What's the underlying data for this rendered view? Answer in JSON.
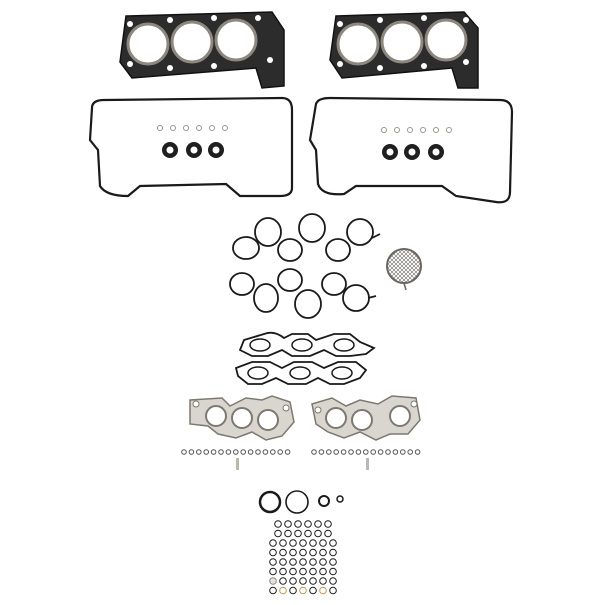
{
  "image": {
    "subject": "engine-head-gasket-set",
    "background_color": "#ffffff",
    "colors": {
      "head_gasket_dark": "#2a2a2a",
      "head_gasket_metal": "#9a948a",
      "rubber_black": "#1a1a1a",
      "seal_gray": "#7a7570",
      "brass": "#b89a55",
      "steel_light": "#d8d5cf",
      "mesh_gray": "#8a8580"
    },
    "counts": {
      "head_gaskets": 2,
      "valve_cover_gaskets": 2,
      "intake_manifold_gaskets": 2,
      "exhaust_manifold_gaskets": 2,
      "lower_manifold_gaskets": 2,
      "strainer_screens": 1
    }
  }
}
